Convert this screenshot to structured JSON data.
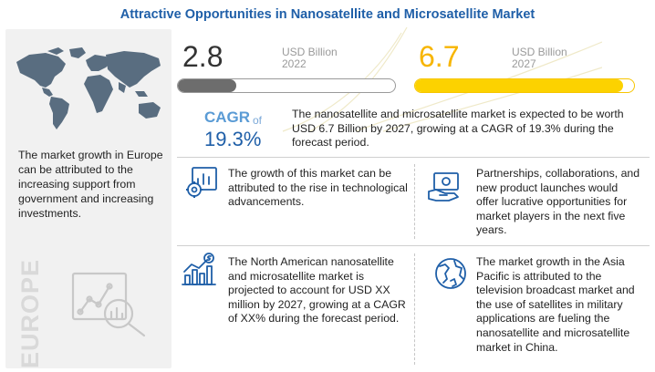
{
  "title": "Attractive Opportunities in Nanosatellite and Microsatellite Market",
  "colors": {
    "title": "#1f5fa8",
    "bar_2022_fill": "#6d6d6d",
    "bar_2027_fill": "#fcd200",
    "value_2027": "#f7b500",
    "cagr_value": "#1f5fa8",
    "map_fill": "#596d80"
  },
  "metrics": {
    "y2022": {
      "value": "2.8",
      "unit": "USD Billion",
      "year": "2022",
      "fill_fraction": 0.27
    },
    "y2027": {
      "value": "6.7",
      "unit": "USD Billion",
      "year": "2027",
      "fill_fraction": 0.95
    },
    "cagr": {
      "label": "CAGR",
      "of": "of",
      "value": "19.3%"
    },
    "summary": "The nanosatellite and microsatellite market is expected to be worth USD 6.7 Billion by 2027, growing at a CAGR of 19.3% during the forecast period."
  },
  "left_panel": {
    "map_icon": "world-map-icon",
    "text": "The market growth in Europe can be attributed to the increasing support from government and increasing investments.",
    "region_label": "EUROPE",
    "illustration_icon": "analytics-magnifier-icon"
  },
  "insights": [
    {
      "icon": "analytics-gear-icon",
      "text": "The growth of this market can be attributed to the rise in technological advancements."
    },
    {
      "icon": "money-handshake-icon",
      "text": "Partnerships, collaborations, and new product launches would offer lucrative opportunities for market players in the next five years."
    },
    {
      "icon": "dollar-growth-chart-icon",
      "text": "The North American nanosatellite and microsatellite market is projected to account for USD XX million by 2027, growing at a CAGR of XX% during the forecast period."
    },
    {
      "icon": "globe-icon",
      "text": "The market growth in the Asia Pacific is attributed to the television broadcast market and the use of satellites in military applications are fueling the nanosatellite and microsatellite market in China."
    }
  ]
}
